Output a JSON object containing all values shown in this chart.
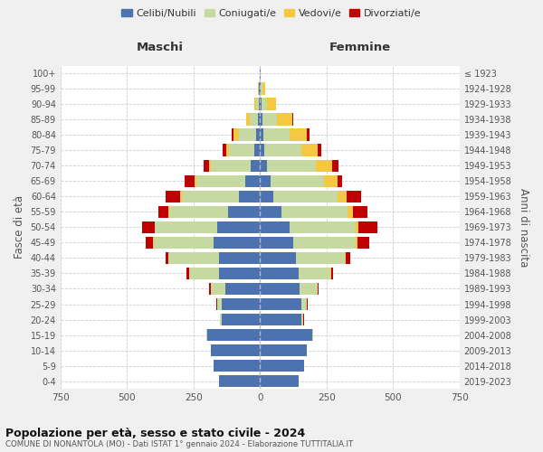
{
  "age_groups": [
    "0-4",
    "5-9",
    "10-14",
    "15-19",
    "20-24",
    "25-29",
    "30-34",
    "35-39",
    "40-44",
    "45-49",
    "50-54",
    "55-59",
    "60-64",
    "65-69",
    "70-74",
    "75-79",
    "80-84",
    "85-89",
    "90-94",
    "95-99",
    "100+"
  ],
  "birth_years": [
    "2019-2023",
    "2014-2018",
    "2009-2013",
    "2004-2008",
    "1999-2003",
    "1994-1998",
    "1989-1993",
    "1984-1988",
    "1979-1983",
    "1974-1978",
    "1969-1973",
    "1964-1968",
    "1959-1963",
    "1954-1958",
    "1949-1953",
    "1944-1948",
    "1939-1943",
    "1934-1938",
    "1929-1933",
    "1924-1928",
    "≤ 1923"
  ],
  "colors": {
    "celibi": "#4C72B0",
    "coniugati": "#c5d9a0",
    "vedovi": "#F5C842",
    "divorziati": "#C00000"
  },
  "maschi": {
    "celibi": [
      155,
      175,
      185,
      200,
      145,
      145,
      130,
      155,
      155,
      175,
      160,
      120,
      80,
      55,
      35,
      20,
      15,
      8,
      5,
      4,
      2
    ],
    "coniugati": [
      0,
      0,
      0,
      2,
      5,
      15,
      55,
      110,
      190,
      225,
      235,
      220,
      215,
      185,
      150,
      95,
      65,
      30,
      10,
      2,
      0
    ],
    "vedovi": [
      0,
      0,
      0,
      0,
      0,
      0,
      0,
      0,
      0,
      1,
      2,
      3,
      5,
      5,
      8,
      12,
      18,
      15,
      8,
      3,
      0
    ],
    "divorziati": [
      0,
      0,
      0,
      0,
      1,
      3,
      5,
      10,
      10,
      30,
      45,
      40,
      55,
      40,
      20,
      15,
      10,
      0,
      0,
      0,
      0
    ]
  },
  "femmine": {
    "celibi": [
      145,
      165,
      175,
      195,
      155,
      155,
      150,
      145,
      135,
      125,
      110,
      80,
      50,
      40,
      25,
      15,
      12,
      10,
      5,
      3,
      2
    ],
    "coniugati": [
      0,
      0,
      0,
      3,
      8,
      20,
      65,
      120,
      185,
      235,
      250,
      250,
      240,
      200,
      185,
      140,
      100,
      55,
      20,
      5,
      0
    ],
    "vedovi": [
      0,
      0,
      0,
      0,
      0,
      0,
      0,
      1,
      3,
      5,
      10,
      20,
      35,
      50,
      60,
      60,
      65,
      55,
      35,
      10,
      2
    ],
    "divorziati": [
      0,
      0,
      0,
      0,
      1,
      3,
      5,
      10,
      15,
      45,
      70,
      55,
      55,
      20,
      25,
      15,
      10,
      5,
      0,
      0,
      0
    ]
  },
  "xlim": 750,
  "title": "Popolazione per età, sesso e stato civile - 2024",
  "subtitle": "COMUNE DI NONANTOLA (MO) - Dati ISTAT 1° gennaio 2024 - Elaborazione TUTTITALIA.IT",
  "ylabel_left": "Fasce di età",
  "ylabel_right": "Anni di nascita",
  "xlabel_maschi": "Maschi",
  "xlabel_femmine": "Femmine",
  "bg_color": "#f0f0f0",
  "plot_bg": "#ffffff"
}
